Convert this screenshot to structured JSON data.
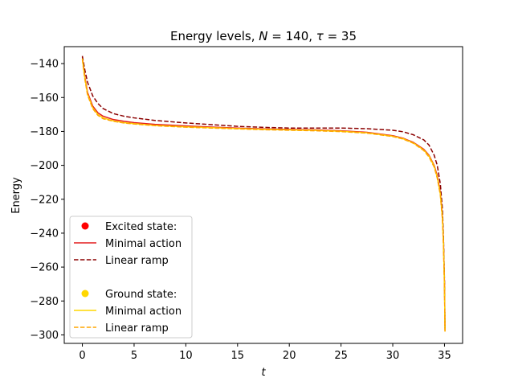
{
  "chart_data": {
    "type": "line",
    "title_plain": "Energy levels, ",
    "title_n_symbol": "N",
    "title_n_value": " = 140, ",
    "title_tau_symbol": "τ",
    "title_tau_value": " = 35",
    "xlabel": "t",
    "ylabel": "Energy",
    "xlim": [
      -1.75,
      36.75
    ],
    "ylim": [
      -305,
      -130
    ],
    "xticks": [
      0,
      5,
      10,
      15,
      20,
      25,
      30,
      35
    ],
    "yticks": [
      -140,
      -160,
      -180,
      -200,
      -220,
      -240,
      -260,
      -280,
      -300
    ],
    "xtick_labels": [
      "0",
      "5",
      "10",
      "15",
      "20",
      "25",
      "30",
      "35"
    ],
    "ytick_labels": [
      "−140",
      "−160",
      "−180",
      "−200",
      "−220",
      "−240",
      "−260",
      "−280",
      "−300"
    ],
    "grid": false,
    "legend_position": "lower-left",
    "legend": {
      "excited_header": "Excited state:",
      "ground_header": "Ground state:",
      "minimal_action": "Minimal action",
      "linear_ramp": "Linear ramp"
    },
    "colors": {
      "excited_marker": "#ff0000",
      "excited_minimal": "#e41a1c",
      "excited_linear": "#8b0000",
      "ground_marker": "#ffd700",
      "ground_minimal": "#ffd700",
      "ground_linear": "#ffa500"
    },
    "series": [
      {
        "name": "Excited state: Minimal action",
        "style": "solid",
        "color_key": "excited_minimal",
        "x": [
          0,
          0.1,
          0.25,
          0.5,
          1,
          1.5,
          2,
          3,
          4,
          5,
          7,
          10,
          12.5,
          15,
          17.5,
          20,
          22.5,
          25,
          27.5,
          30,
          31,
          32,
          33,
          33.5,
          34,
          34.3,
          34.6,
          34.8,
          34.9,
          35,
          35.05
        ],
        "y": [
          -136,
          -141,
          -148,
          -157,
          -165,
          -169,
          -171,
          -173,
          -174,
          -174.8,
          -175.8,
          -176.8,
          -177.4,
          -178,
          -178.5,
          -178.8,
          -179.1,
          -179.6,
          -180.5,
          -182.5,
          -184,
          -186.5,
          -190.5,
          -194,
          -200,
          -206,
          -216,
          -230,
          -245,
          -270,
          -297
        ]
      },
      {
        "name": "Excited state: Linear ramp",
        "style": "dashed",
        "color_key": "excited_linear",
        "x": [
          0,
          0.1,
          0.25,
          0.5,
          1,
          1.5,
          2,
          3,
          4,
          5,
          7,
          10,
          12.5,
          15,
          17.5,
          20,
          22.5,
          25,
          27.5,
          30,
          31,
          32,
          33,
          33.5,
          34,
          34.3,
          34.6,
          34.8,
          34.9,
          35,
          35.05
        ],
        "y": [
          -135.5,
          -139,
          -144,
          -151,
          -159,
          -163.5,
          -166.5,
          -169.5,
          -171,
          -172,
          -173.5,
          -175,
          -176,
          -177,
          -177.6,
          -178,
          -178,
          -178,
          -178.4,
          -179.3,
          -180.2,
          -182,
          -185,
          -188,
          -194,
          -200,
          -211,
          -226,
          -242,
          -268,
          -296
        ]
      },
      {
        "name": "Ground state: Minimal action",
        "style": "solid",
        "color_key": "ground_minimal",
        "x": [
          0,
          0.1,
          0.25,
          0.5,
          1,
          1.5,
          2,
          3,
          4,
          5,
          7,
          10,
          12.5,
          15,
          17.5,
          20,
          22.5,
          25,
          27.5,
          30,
          31,
          32,
          33,
          33.5,
          34,
          34.3,
          34.6,
          34.8,
          34.9,
          35,
          35.05
        ],
        "y": [
          -137,
          -142,
          -149,
          -158,
          -166,
          -170,
          -172,
          -173.8,
          -174.8,
          -175.4,
          -176.4,
          -177.3,
          -177.8,
          -178.3,
          -178.8,
          -179.1,
          -179.4,
          -179.9,
          -180.8,
          -182.8,
          -184.3,
          -186.8,
          -191,
          -194.5,
          -200.5,
          -207,
          -217,
          -231,
          -246,
          -271,
          -298
        ]
      },
      {
        "name": "Ground state: Linear ramp",
        "style": "dashed",
        "color_key": "ground_linear",
        "x": [
          0,
          0.1,
          0.25,
          0.5,
          1,
          1.5,
          2,
          3,
          4,
          5,
          7,
          10,
          12.5,
          15,
          17.5,
          20,
          22.5,
          25,
          27.5,
          30,
          31,
          32,
          33,
          33.5,
          34,
          34.3,
          34.6,
          34.8,
          34.9,
          35,
          35.05
        ],
        "y": [
          -137.5,
          -142.5,
          -149.5,
          -158.5,
          -166.5,
          -170.5,
          -172.5,
          -174,
          -175,
          -175.6,
          -176.6,
          -177.5,
          -178,
          -178.5,
          -179,
          -179.3,
          -179.6,
          -180.1,
          -181,
          -183,
          -184.5,
          -187,
          -191.3,
          -195,
          -201,
          -207.5,
          -217.5,
          -232,
          -247,
          -272,
          -298
        ]
      }
    ]
  }
}
